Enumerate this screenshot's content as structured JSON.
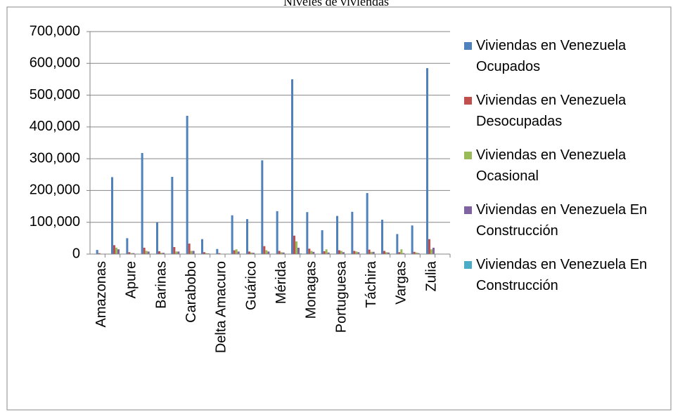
{
  "chart_data": {
    "type": "bar",
    "title": "Niveles de viviendas",
    "categories": [
      "Amazonas",
      null,
      "Apure",
      null,
      "Barinas",
      null,
      "Carabobo",
      null,
      "Delta Amacuro",
      null,
      "Guárico",
      null,
      "Mérida",
      null,
      "Monagas",
      null,
      "Portuguesa",
      null,
      "Táchira",
      null,
      "Vargas",
      null,
      "Zulia",
      null
    ],
    "series": [
      {
        "name": "Viviendas en Venezuela Ocupados",
        "color": "#4f81bd",
        "values": [
          13000,
          242000,
          50000,
          318000,
          100000,
          243000,
          435000,
          47000,
          16000,
          122000,
          110000,
          295000,
          135000,
          550000,
          132000,
          75000,
          120000,
          133000,
          192000,
          108000,
          63000,
          90000,
          585000,
          null
        ]
      },
      {
        "name": "Viviendas en Venezuela Desocupadas",
        "color": "#c0504d",
        "values": [
          3000,
          28000,
          6000,
          20000,
          9000,
          22000,
          33000,
          6000,
          3000,
          12000,
          8000,
          25000,
          10000,
          58000,
          17000,
          9000,
          12000,
          10000,
          14000,
          10000,
          6000,
          7000,
          47000,
          null
        ]
      },
      {
        "name": "Viviendas en Venezuela Ocasional",
        "color": "#9bbb59",
        "values": [
          1000,
          20000,
          3000,
          10000,
          4000,
          8000,
          10000,
          3000,
          1000,
          15000,
          5000,
          12000,
          6000,
          40000,
          10000,
          15000,
          10000,
          8000,
          7000,
          6000,
          15000,
          5000,
          15000,
          null
        ]
      },
      {
        "name": "Viviendas en Venezuela En Construcción",
        "color": "#8064a2",
        "values": [
          1000,
          15000,
          3000,
          8000,
          4000,
          8000,
          10000,
          2000,
          1000,
          8000,
          4000,
          8000,
          5000,
          20000,
          7000,
          5000,
          6000,
          6000,
          7000,
          5000,
          3000,
          3000,
          20000,
          null
        ]
      },
      {
        "name": "Viviendas en Venezuela En Construcción",
        "color": "#4bacc6",
        "values": [
          500,
          1000,
          500,
          1000,
          500,
          1000,
          1000,
          500,
          500,
          500,
          500,
          1000,
          500,
          2000,
          500,
          500,
          500,
          500,
          500,
          500,
          500,
          500,
          1000,
          null
        ]
      }
    ],
    "ylim": [
      0,
      700000
    ],
    "yticks": [
      0,
      {
        "value": 100000,
        "label": "100,000"
      },
      {
        "value": 200000,
        "label": "200,000"
      },
      {
        "value": 300000,
        "label": "300,000"
      },
      {
        "value": 400000,
        "label": "400,000"
      },
      {
        "value": 500000,
        "label": "500,000"
      },
      {
        "value": 600000,
        "label": "600,000"
      },
      {
        "value": 700000,
        "label": "700,000"
      }
    ],
    "grid": true,
    "legend": "right"
  }
}
